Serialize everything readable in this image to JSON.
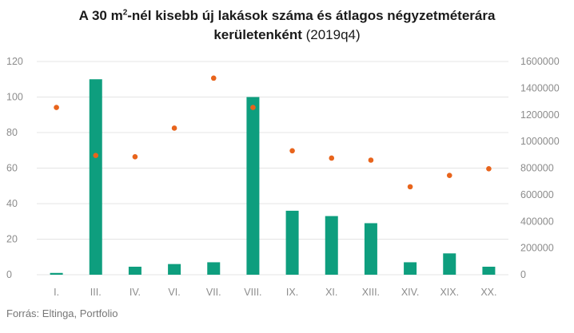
{
  "chart_data": {
    "type": "bar",
    "title": {
      "line1_pre": "A 30 m",
      "line1_sup": "2",
      "line1_post": "-nél kisebb új lakások száma és átlagos négyzetméterára",
      "line2_bold": "kerületenként",
      "line2_normal": " (2019q4)"
    },
    "categories": [
      "I.",
      "III.",
      "IV.",
      "VI.",
      "VII.",
      "VIII.",
      "IX.",
      "XI.",
      "XIII.",
      "XIV.",
      "XIX.",
      "XX."
    ],
    "series": [
      {
        "type": "bar",
        "axis": "left",
        "color": "#0e9e7e",
        "values": [
          1,
          110,
          4.5,
          6,
          7,
          100,
          36,
          33,
          29,
          7,
          12,
          4.5
        ]
      },
      {
        "type": "scatter",
        "axis": "right",
        "color": "#e8641c",
        "values": [
          1255000,
          895000,
          885000,
          1100000,
          1475000,
          1255000,
          930000,
          875000,
          860000,
          660000,
          745000,
          795000
        ]
      }
    ],
    "y_left": {
      "min": 0,
      "max": 120,
      "ticks": [
        "0",
        "20",
        "40",
        "60",
        "80",
        "100",
        "120"
      ]
    },
    "y_right": {
      "min": 0,
      "max": 1600000,
      "ticks": [
        "0",
        "200000",
        "400000",
        "600000",
        "800000",
        "1000000",
        "1200000",
        "1400000",
        "1600000"
      ]
    },
    "grid": true,
    "legend": "none"
  },
  "source": "Forrás: Eltinga, Portfolio"
}
